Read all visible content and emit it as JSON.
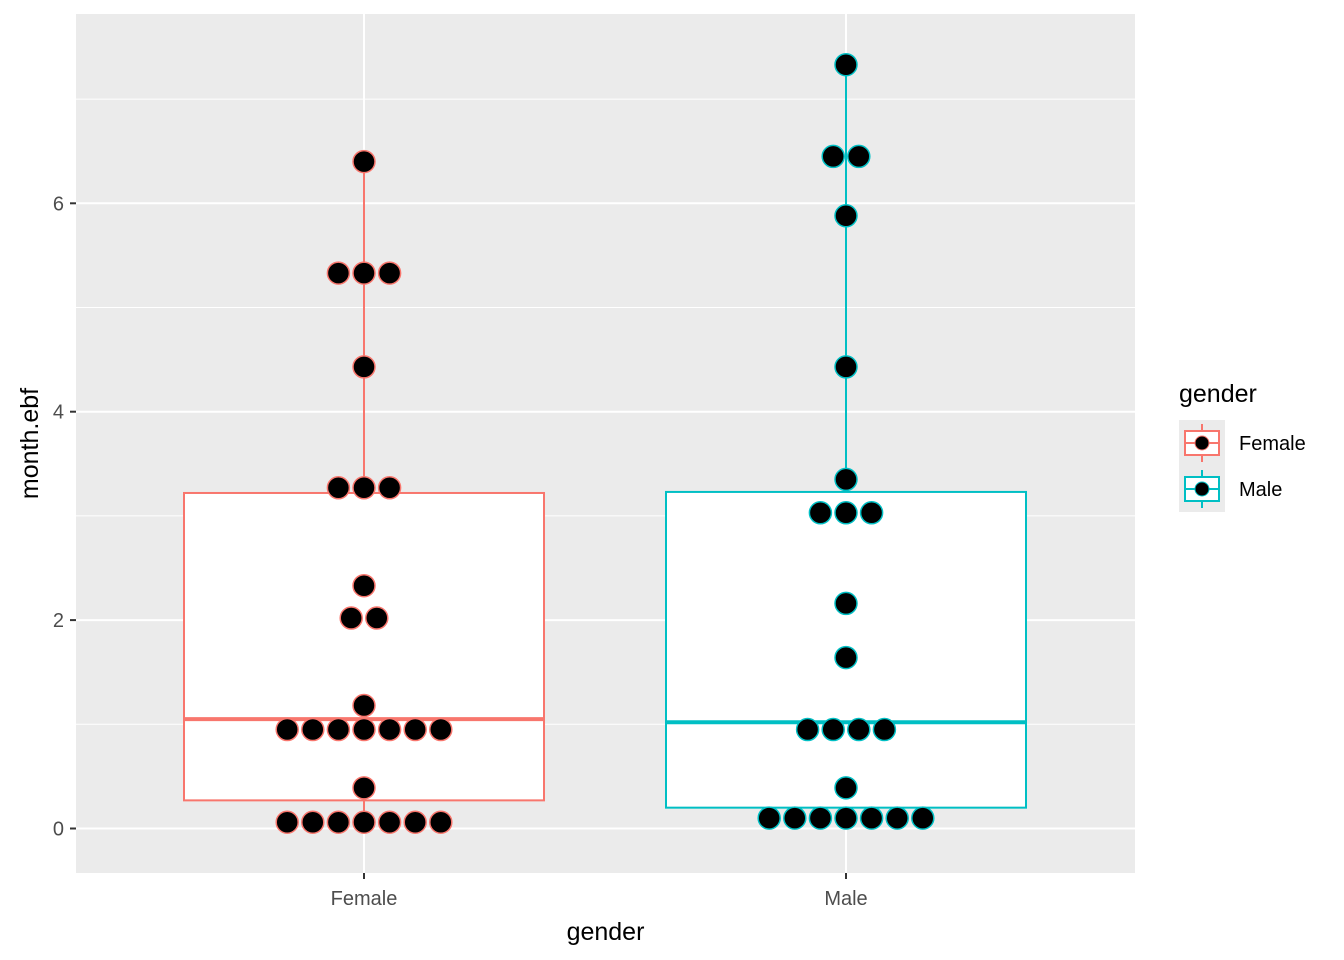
{
  "chart_data": {
    "type": "boxplot",
    "xlabel": "gender",
    "ylabel": "month.ebf",
    "categories": [
      "Female",
      "Male"
    ],
    "ylim": [
      -0.85,
      7.8
    ],
    "y_ticks": [
      0,
      2,
      4,
      6
    ],
    "grid": true,
    "legend": {
      "title": "gender",
      "position": "right",
      "entries": [
        "Female",
        "Male"
      ]
    },
    "colors": {
      "Female": "#F8766D",
      "Male": "#00BFC4",
      "panel": "#EBEBEB",
      "grid": "#FFFFFF",
      "dot": "#000000"
    },
    "series": [
      {
        "name": "Female",
        "box": {
          "q1": 0.27,
          "median": 1.05,
          "q3": 3.22,
          "whisker_low": 0.06,
          "whisker_high": 6.4
        },
        "dots": [
          {
            "y": 6.4,
            "count": 1
          },
          {
            "y": 5.33,
            "count": 3
          },
          {
            "y": 4.43,
            "count": 1
          },
          {
            "y": 3.27,
            "count": 3
          },
          {
            "y": 2.33,
            "count": 1
          },
          {
            "y": 2.02,
            "count": 2
          },
          {
            "y": 1.18,
            "count": 1
          },
          {
            "y": 0.95,
            "count": 7
          },
          {
            "y": 0.39,
            "count": 1
          },
          {
            "y": 0.06,
            "count": 7
          }
        ]
      },
      {
        "name": "Male",
        "box": {
          "q1": 0.2,
          "median": 1.02,
          "q3": 3.23,
          "whisker_low": 0.1,
          "whisker_high": 7.33
        },
        "dots": [
          {
            "y": 7.33,
            "count": 1
          },
          {
            "y": 6.45,
            "count": 2
          },
          {
            "y": 5.88,
            "count": 1
          },
          {
            "y": 4.43,
            "count": 1
          },
          {
            "y": 3.35,
            "count": 1
          },
          {
            "y": 3.03,
            "count": 3
          },
          {
            "y": 2.16,
            "count": 1
          },
          {
            "y": 1.64,
            "count": 1
          },
          {
            "y": 0.95,
            "count": 4
          },
          {
            "y": 0.39,
            "count": 1
          },
          {
            "y": 0.1,
            "count": 7
          }
        ]
      }
    ]
  }
}
